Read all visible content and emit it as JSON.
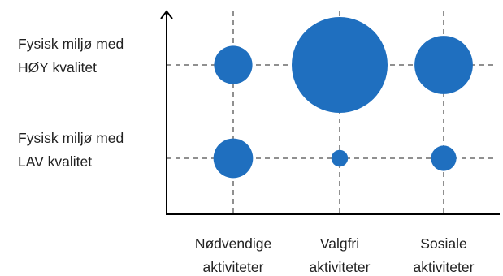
{
  "chart_data": {
    "type": "scatter",
    "subtype": "bubble",
    "grid": true,
    "color": "#1f6fbf",
    "x_categories": [
      {
        "lines": [
          "Nødvendige",
          "aktiviteter"
        ]
      },
      {
        "lines": [
          "Valgfri",
          "aktiviteter"
        ]
      },
      {
        "lines": [
          "Sosiale",
          "aktiviteter"
        ]
      }
    ],
    "y_categories": [
      {
        "lines": [
          "Fysisk miljø med",
          "HØY kvalitet"
        ]
      },
      {
        "lines": [
          "Fysisk miljø med",
          "LAV kvalitet"
        ]
      }
    ],
    "points": [
      {
        "x": 0,
        "y": 0,
        "size": 0.16
      },
      {
        "x": 1,
        "y": 0,
        "size": 1.0
      },
      {
        "x": 2,
        "y": 0,
        "size": 0.37
      },
      {
        "x": 0,
        "y": 1,
        "size": 0.17
      },
      {
        "x": 1,
        "y": 1,
        "size": 0.03
      },
      {
        "x": 2,
        "y": 1,
        "size": 0.07
      }
    ]
  }
}
